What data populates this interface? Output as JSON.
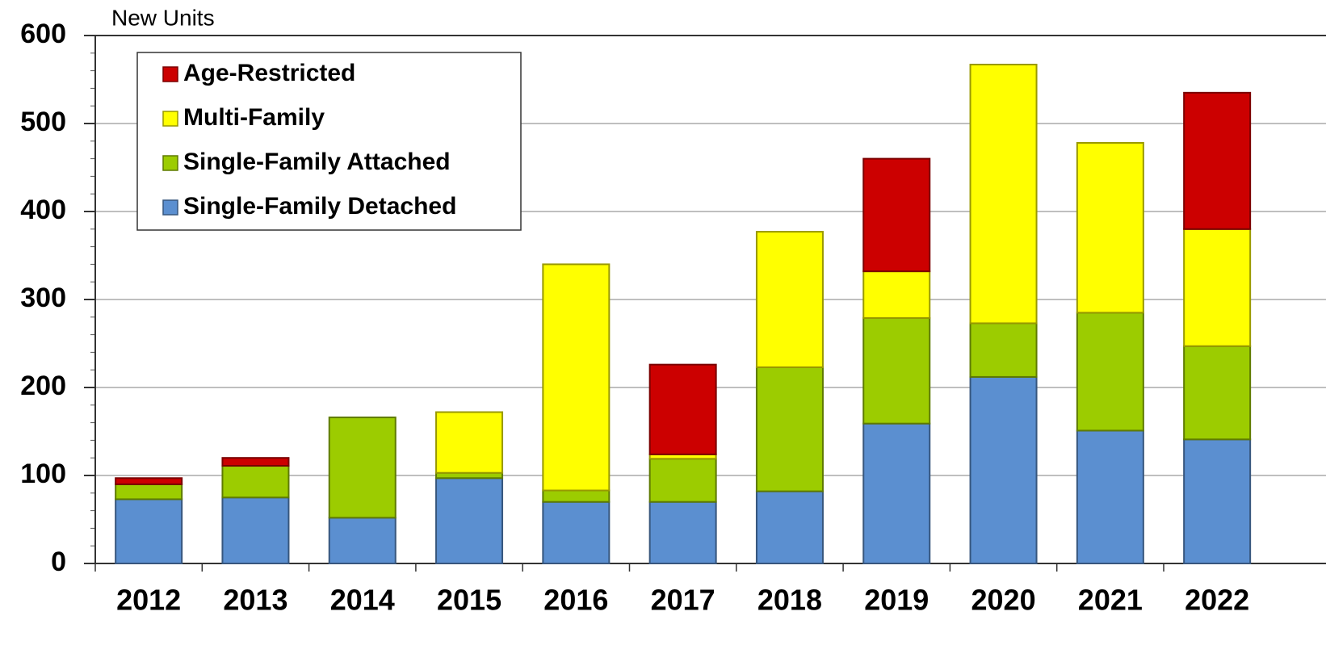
{
  "chart_data": {
    "type": "stacked_bar",
    "y_label": "New Units",
    "categories": [
      "2012",
      "2013",
      "2014",
      "2015",
      "2016",
      "2017",
      "2018",
      "2019",
      "2020",
      "2021",
      "2022"
    ],
    "series": [
      {
        "name": "Single-Family Detached",
        "color": "#5b8fd0",
        "values": [
          73,
          75,
          52,
          97,
          70,
          70,
          82,
          159,
          212,
          151,
          141
        ]
      },
      {
        "name": "Single-Family Attached",
        "color": "#9ccc00",
        "values": [
          17,
          36,
          114,
          6,
          13,
          49,
          141,
          120,
          61,
          134,
          106
        ]
      },
      {
        "name": "Multi-Family",
        "color": "#ffff00",
        "values": [
          0,
          0,
          0,
          69,
          257,
          5,
          154,
          53,
          294,
          193,
          133
        ]
      },
      {
        "name": "Age-Restricted",
        "color": "#cc0000",
        "values": [
          7,
          9,
          0,
          0,
          0,
          102,
          0,
          128,
          0,
          0,
          155
        ]
      }
    ],
    "ylim": [
      0,
      600
    ],
    "yticks": [
      0,
      100,
      200,
      300,
      400,
      500,
      600
    ],
    "grid": true,
    "legend": "upper left"
  }
}
